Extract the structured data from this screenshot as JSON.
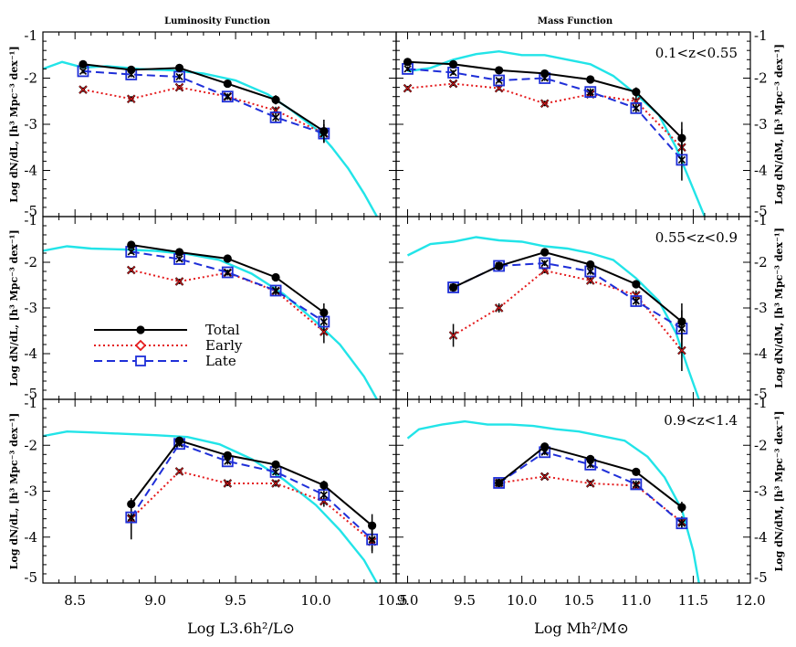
{
  "chart_data": {
    "type": "line",
    "titles": {
      "left": "Luminosity Function",
      "right": "Mass Function"
    },
    "xlabels": {
      "left": "Log L3.6h²/L⊙",
      "right": "Log Mh²/M⊙"
    },
    "ylabels": {
      "left": "Log dN/dL, [h³ Mpc⁻³ dex⁻¹]",
      "right": "Log dN/dM, [h³ Mpc⁻³ dex⁻¹]"
    },
    "xlim": {
      "left": [
        8.3,
        10.5
      ],
      "right": [
        8.9,
        12.0
      ]
    },
    "ylim": [
      -5,
      -1
    ],
    "xticks": {
      "left": [
        "8.5",
        "9.0",
        "9.5",
        "10.0",
        "10.5"
      ],
      "right": [
        "9.0",
        "9.5",
        "10.0",
        "10.5",
        "11.0",
        "11.5",
        "12.0"
      ]
    },
    "xtick_values": {
      "left": [
        8.5,
        9.0,
        9.5,
        10.0,
        10.5
      ],
      "right": [
        9.0,
        9.5,
        10.0,
        10.5,
        11.0,
        11.5,
        12.0
      ]
    },
    "yticks": [
      "-1",
      "-2",
      "-3",
      "-4",
      "-5"
    ],
    "ytick_values": [
      -1,
      -2,
      -3,
      -4,
      -5
    ],
    "colors": {
      "total": "#000000",
      "early": "#e41a1c",
      "late": "#1f2fd8",
      "model": "#22e4e8"
    },
    "legend": {
      "entries": [
        "Total",
        "Early",
        "Late"
      ],
      "position": "middle-left panel"
    },
    "panels": [
      {
        "side": "left",
        "row": 0,
        "zlabel": "",
        "total": {
          "x": [
            8.55,
            8.85,
            9.15,
            9.45,
            9.75,
            10.05
          ],
          "y": [
            -1.7,
            -1.82,
            -1.78,
            -2.12,
            -2.47,
            -3.15
          ],
          "err": [
            0.06,
            0.06,
            0.06,
            0.07,
            0.1,
            0.25
          ]
        },
        "early": {
          "x": [
            8.55,
            8.85,
            9.15,
            9.45,
            9.75,
            10.05
          ],
          "y": [
            -2.25,
            -2.45,
            -2.2,
            -2.4,
            -2.7,
            -3.2
          ],
          "err": [
            0.05,
            0.06,
            0.05,
            0.06,
            0.08,
            0.2
          ]
        },
        "late": {
          "x": [
            8.55,
            8.85,
            9.15,
            9.45,
            9.75,
            10.05
          ],
          "y": [
            -1.85,
            -1.92,
            -1.97,
            -2.4,
            -2.85,
            -3.2
          ],
          "err": [
            0.05,
            0.06,
            0.06,
            0.07,
            0.12,
            0.2
          ]
        },
        "model": {
          "x": [
            8.3,
            8.42,
            8.55,
            8.7,
            8.9,
            9.1,
            9.3,
            9.5,
            9.7,
            9.85,
            10.0,
            10.1,
            10.2,
            10.3,
            10.38
          ],
          "y": [
            -1.8,
            -1.65,
            -1.77,
            -1.74,
            -1.8,
            -1.83,
            -1.9,
            -2.05,
            -2.35,
            -2.7,
            -3.1,
            -3.5,
            -3.95,
            -4.5,
            -5.0
          ]
        }
      },
      {
        "side": "right",
        "row": 0,
        "zlabel": "0.1<z<0.55",
        "total": {
          "x": [
            9.0,
            9.4,
            9.8,
            10.2,
            10.6,
            11.0,
            11.4
          ],
          "y": [
            -1.65,
            -1.7,
            -1.83,
            -1.9,
            -2.03,
            -2.3,
            -3.3
          ],
          "err": [
            0.05,
            0.05,
            0.05,
            0.06,
            0.07,
            0.1,
            0.35
          ]
        },
        "early": {
          "x": [
            9.0,
            9.4,
            9.8,
            10.2,
            10.6,
            11.0,
            11.4
          ],
          "y": [
            -2.22,
            -2.12,
            -2.22,
            -2.55,
            -2.35,
            -2.5,
            -3.5
          ],
          "err": [
            0.05,
            0.05,
            0.05,
            0.06,
            0.07,
            0.12,
            0.4
          ]
        },
        "late": {
          "x": [
            9.0,
            9.4,
            9.8,
            10.2,
            10.6,
            11.0,
            11.4
          ],
          "y": [
            -1.8,
            -1.88,
            -2.05,
            -2.0,
            -2.3,
            -2.65,
            -3.77
          ],
          "err": [
            0.05,
            0.05,
            0.05,
            0.06,
            0.08,
            0.12,
            0.45
          ]
        },
        "model": {
          "x": [
            9.0,
            9.2,
            9.4,
            9.6,
            9.8,
            10.0,
            10.2,
            10.4,
            10.6,
            10.8,
            11.0,
            11.2,
            11.35,
            11.5,
            11.6
          ],
          "y": [
            -1.85,
            -1.78,
            -1.6,
            -1.48,
            -1.42,
            -1.5,
            -1.5,
            -1.6,
            -1.7,
            -1.95,
            -2.35,
            -2.8,
            -3.5,
            -4.4,
            -5.0
          ]
        }
      },
      {
        "side": "left",
        "row": 1,
        "zlabel": "",
        "total": {
          "x": [
            8.85,
            9.15,
            9.45,
            9.75,
            10.05
          ],
          "y": [
            -1.62,
            -1.78,
            -1.92,
            -2.33,
            -3.1
          ],
          "err": [
            0.05,
            0.05,
            0.06,
            0.08,
            0.2
          ]
        },
        "early": {
          "x": [
            8.85,
            9.15,
            9.45,
            9.75,
            10.05
          ],
          "y": [
            -2.17,
            -2.42,
            -2.23,
            -2.63,
            -3.52
          ],
          "err": [
            0.05,
            0.06,
            0.06,
            0.1,
            0.25
          ]
        },
        "late": {
          "x": [
            8.85,
            9.15,
            9.45,
            9.75,
            10.05
          ],
          "y": [
            -1.77,
            -1.93,
            -2.22,
            -2.62,
            -3.3
          ],
          "err": [
            0.05,
            0.05,
            0.06,
            0.1,
            0.2
          ]
        },
        "model": {
          "x": [
            8.3,
            8.45,
            8.6,
            8.8,
            9.0,
            9.2,
            9.4,
            9.6,
            9.8,
            10.0,
            10.15,
            10.3,
            10.38
          ],
          "y": [
            -1.75,
            -1.65,
            -1.7,
            -1.72,
            -1.75,
            -1.82,
            -1.95,
            -2.25,
            -2.7,
            -3.3,
            -3.8,
            -4.5,
            -5.0
          ]
        }
      },
      {
        "side": "right",
        "row": 1,
        "zlabel": "0.55<z<0.9",
        "total": {
          "x": [
            9.4,
            9.8,
            10.2,
            10.6,
            11.0,
            11.4
          ],
          "y": [
            -2.55,
            -2.08,
            -1.78,
            -2.05,
            -2.48,
            -3.3
          ],
          "err": [
            0.05,
            0.05,
            0.06,
            0.06,
            0.08,
            0.4
          ]
        },
        "early": {
          "x": [
            9.4,
            9.8,
            10.2,
            10.6,
            11.0,
            11.4
          ],
          "y": [
            -3.6,
            -3.0,
            -2.18,
            -2.4,
            -2.72,
            -3.93
          ],
          "err": [
            0.25,
            0.1,
            0.06,
            0.07,
            0.1,
            0.45
          ]
        },
        "late": {
          "x": [
            9.4,
            9.8,
            10.2,
            10.6,
            11.0,
            11.4
          ],
          "y": [
            -2.55,
            -2.08,
            -2.02,
            -2.2,
            -2.85,
            -3.45
          ],
          "err": [
            0.05,
            0.05,
            0.06,
            0.07,
            0.1,
            0.4
          ]
        },
        "model": {
          "x": [
            9.0,
            9.2,
            9.4,
            9.6,
            9.8,
            10.0,
            10.2,
            10.4,
            10.6,
            10.8,
            11.0,
            11.2,
            11.35,
            11.45,
            11.55
          ],
          "y": [
            -1.85,
            -1.6,
            -1.55,
            -1.45,
            -1.52,
            -1.55,
            -1.65,
            -1.7,
            -1.8,
            -1.95,
            -2.35,
            -2.85,
            -3.55,
            -4.3,
            -5.0
          ]
        }
      },
      {
        "side": "left",
        "row": 2,
        "zlabel": "",
        "total": {
          "x": [
            8.85,
            9.15,
            9.45,
            9.75,
            10.05,
            10.35
          ],
          "y": [
            -3.28,
            -1.9,
            -2.22,
            -2.42,
            -2.87,
            -3.75
          ],
          "err": [
            0.1,
            0.06,
            0.06,
            0.08,
            0.1,
            0.25
          ]
        },
        "early": {
          "x": [
            8.85,
            9.15,
            9.45,
            9.75,
            10.05,
            10.35
          ],
          "y": [
            -3.6,
            -2.57,
            -2.83,
            -2.83,
            -3.22,
            -4.1
          ],
          "err": [
            0.45,
            0.05,
            0.06,
            0.07,
            0.12,
            0.25
          ]
        },
        "late": {
          "x": [
            8.85,
            9.15,
            9.45,
            9.75,
            10.05,
            10.35
          ],
          "y": [
            -3.57,
            -1.97,
            -2.35,
            -2.58,
            -3.08,
            -4.05
          ],
          "err": [
            0.2,
            0.06,
            0.07,
            0.08,
            0.12,
            0.25
          ]
        },
        "model": {
          "x": [
            8.3,
            8.45,
            8.6,
            8.8,
            9.0,
            9.2,
            9.4,
            9.6,
            9.8,
            10.0,
            10.15,
            10.3,
            10.38
          ],
          "y": [
            -1.8,
            -1.7,
            -1.72,
            -1.75,
            -1.78,
            -1.82,
            -1.98,
            -2.3,
            -2.75,
            -3.3,
            -3.85,
            -4.5,
            -5.0
          ]
        }
      },
      {
        "side": "right",
        "row": 2,
        "zlabel": "0.9<z<1.4",
        "total": {
          "x": [
            9.8,
            10.2,
            10.6,
            11.0,
            11.4
          ],
          "y": [
            -2.82,
            -2.03,
            -2.3,
            -2.58,
            -3.35
          ],
          "err": [
            0.05,
            0.06,
            0.06,
            0.08,
            0.12
          ]
        },
        "early": {
          "x": [
            9.8,
            10.2,
            10.6,
            11.0,
            11.4
          ],
          "y": [
            -2.82,
            -2.68,
            -2.83,
            -2.88,
            -3.67
          ],
          "err": [
            0.05,
            0.05,
            0.06,
            0.07,
            0.12
          ]
        },
        "late": {
          "x": [
            9.8,
            10.2,
            10.6,
            11.0,
            11.4
          ],
          "y": [
            -2.82,
            -2.15,
            -2.42,
            -2.85,
            -3.7
          ],
          "err": [
            0.05,
            0.06,
            0.07,
            0.08,
            0.12
          ]
        },
        "model": {
          "x": [
            9.0,
            9.1,
            9.3,
            9.5,
            9.7,
            9.9,
            10.1,
            10.3,
            10.5,
            10.7,
            10.9,
            11.1,
            11.25,
            11.4,
            11.5,
            11.55
          ],
          "y": [
            -1.85,
            -1.65,
            -1.55,
            -1.48,
            -1.55,
            -1.55,
            -1.58,
            -1.65,
            -1.7,
            -1.8,
            -1.9,
            -2.25,
            -2.7,
            -3.4,
            -4.3,
            -5.0
          ]
        }
      }
    ]
  }
}
